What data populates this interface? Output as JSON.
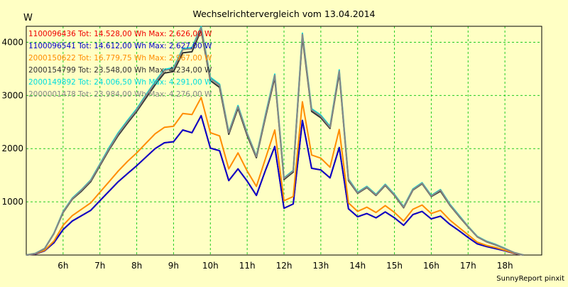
{
  "chart_data": {
    "type": "line",
    "title": "Wechselrichtervergleich vom 13.04.2014",
    "ylabel": "W",
    "xlabel": "",
    "footer": "SunnyReport pinxit",
    "grid": true,
    "legend_position": "top-left",
    "ylim": [
      0,
      4300
    ],
    "xlim": [
      5.0,
      19.0
    ],
    "yticks": [
      1000,
      2000,
      3000,
      4000
    ],
    "ytick_labels": [
      "1000",
      "2000",
      "3000",
      "4000"
    ],
    "xticks": [
      6,
      7,
      8,
      9,
      10,
      11,
      12,
      13,
      14,
      15,
      16,
      17,
      18
    ],
    "xtick_labels": [
      "6h",
      "7h",
      "8h",
      "9h",
      "10h",
      "11h",
      "12h",
      "13h",
      "14h",
      "15h",
      "16h",
      "17h",
      "18h"
    ],
    "x": [
      5.0,
      5.25,
      5.5,
      5.75,
      6.0,
      6.25,
      6.5,
      6.75,
      7.0,
      7.25,
      7.5,
      7.75,
      8.0,
      8.25,
      8.5,
      8.75,
      9.0,
      9.25,
      9.5,
      9.75,
      10.0,
      10.25,
      10.5,
      10.75,
      11.0,
      11.25,
      11.5,
      11.75,
      12.0,
      12.25,
      12.5,
      12.75,
      13.0,
      13.25,
      13.5,
      13.75,
      14.0,
      14.25,
      14.5,
      14.75,
      15.0,
      15.25,
      15.5,
      15.75,
      16.0,
      16.25,
      16.5,
      16.75,
      17.0,
      17.25,
      17.5,
      17.75,
      18.0,
      18.25,
      18.5
    ],
    "series": [
      {
        "name": "1100096436",
        "legend": "1100096436 Tot: 14.528,00 Wh Max: 2.626,00 W",
        "color": "#ee0000",
        "values": [
          0,
          20,
          80,
          230,
          480,
          640,
          740,
          840,
          1020,
          1200,
          1380,
          1530,
          1680,
          1840,
          2000,
          2110,
          2130,
          2350,
          2300,
          2620,
          2010,
          1960,
          1400,
          1620,
          1390,
          1120,
          1600,
          2040,
          880,
          960,
          2530,
          1630,
          1600,
          1450,
          2020,
          870,
          720,
          780,
          700,
          810,
          700,
          560,
          760,
          820,
          680,
          730,
          580,
          460,
          330,
          210,
          160,
          120,
          80,
          30,
          0
        ]
      },
      {
        "name": "1100096541",
        "legend": "1100096541 Tot: 14.612,00 Wh Max: 2.627,00 W",
        "color": "#0000cc",
        "values": [
          0,
          20,
          80,
          230,
          480,
          640,
          740,
          840,
          1020,
          1200,
          1380,
          1530,
          1680,
          1840,
          2000,
          2110,
          2130,
          2350,
          2300,
          2620,
          2010,
          1960,
          1400,
          1620,
          1390,
          1120,
          1600,
          2040,
          880,
          960,
          2530,
          1630,
          1600,
          1450,
          2020,
          870,
          720,
          780,
          700,
          810,
          700,
          560,
          760,
          820,
          680,
          730,
          580,
          460,
          330,
          210,
          160,
          120,
          80,
          30,
          0
        ]
      },
      {
        "name": "2000150622",
        "legend": "2000150622 Tot: 16.779,75 Wh Max: 2.967,00 W",
        "color": "#ff8c00",
        "values": [
          0,
          25,
          90,
          260,
          560,
          740,
          860,
          980,
          1180,
          1380,
          1580,
          1760,
          1920,
          2100,
          2280,
          2400,
          2420,
          2660,
          2640,
          2960,
          2300,
          2240,
          1620,
          1920,
          1580,
          1290,
          1820,
          2350,
          1020,
          1100,
          2880,
          1880,
          1820,
          1650,
          2360,
          980,
          820,
          900,
          800,
          930,
          800,
          640,
          860,
          940,
          780,
          840,
          660,
          520,
          380,
          240,
          180,
          140,
          90,
          35,
          0
        ]
      },
      {
        "name": "2000154799",
        "legend": "2000154799 Tot: 23.548,00 Wh Max: 4.234,00 W",
        "color": "#333333",
        "values": [
          0,
          30,
          120,
          400,
          800,
          1050,
          1200,
          1380,
          1680,
          1980,
          2250,
          2480,
          2700,
          2950,
          3200,
          3420,
          3450,
          3800,
          3820,
          4230,
          3280,
          3150,
          2270,
          2760,
          2250,
          1830,
          2600,
          3340,
          1420,
          1560,
          4100,
          2700,
          2580,
          2380,
          3420,
          1400,
          1160,
          1270,
          1120,
          1310,
          1120,
          890,
          1220,
          1340,
          1100,
          1200,
          940,
          730,
          530,
          340,
          250,
          190,
          120,
          45,
          0
        ]
      },
      {
        "name": "2000149892",
        "legend": "2000149892 Tot: 24.006,50 Wh Max: 4.291,00 W",
        "color": "#00dddd",
        "values": [
          0,
          32,
          125,
          410,
          820,
          1070,
          1230,
          1410,
          1710,
          2020,
          2300,
          2530,
          2750,
          3010,
          3260,
          3490,
          3520,
          3880,
          3900,
          4290,
          3340,
          3210,
          2310,
          2810,
          2290,
          1860,
          2650,
          3400,
          1450,
          1590,
          4170,
          2750,
          2630,
          2420,
          3480,
          1430,
          1180,
          1290,
          1140,
          1330,
          1140,
          910,
          1240,
          1360,
          1120,
          1230,
          960,
          750,
          540,
          350,
          260,
          200,
          125,
          45,
          0
        ]
      },
      {
        "name": "2000001478",
        "legend": "2000001478 Tot: 23.984,00 Wh Max: 4.276,00 W",
        "color": "#888888",
        "values": [
          0,
          31,
          123,
          405,
          810,
          1060,
          1220,
          1400,
          1700,
          2000,
          2280,
          2510,
          2730,
          2990,
          3240,
          3470,
          3500,
          3860,
          3880,
          4270,
          3320,
          3190,
          2300,
          2790,
          2280,
          1850,
          2630,
          3380,
          1440,
          1580,
          4150,
          2730,
          2610,
          2400,
          3460,
          1420,
          1170,
          1280,
          1130,
          1320,
          1130,
          900,
          1230,
          1350,
          1110,
          1220,
          950,
          740,
          535,
          345,
          255,
          195,
          122,
          45,
          0
        ]
      }
    ]
  }
}
